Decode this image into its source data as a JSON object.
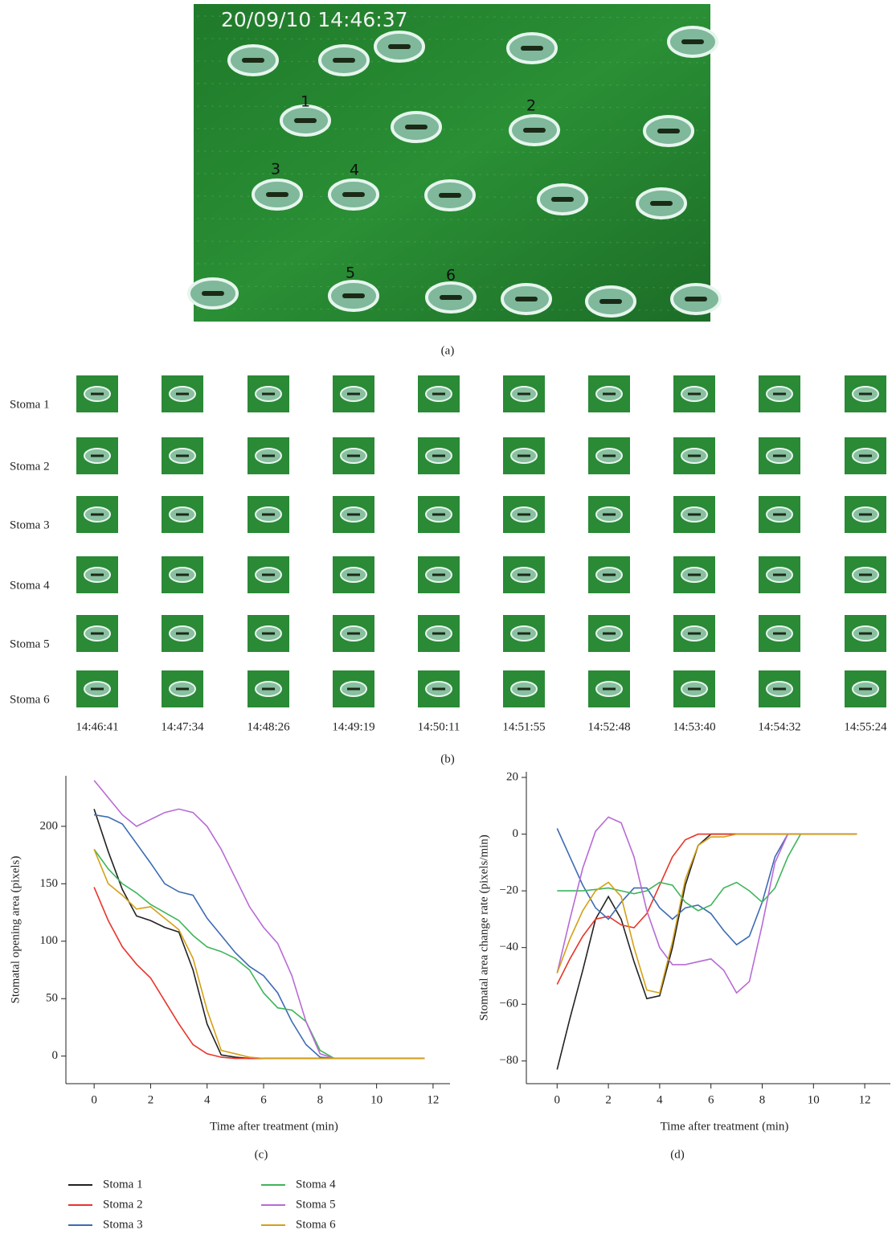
{
  "panel_a": {
    "timestamp": "20/09/10 14:46:37",
    "markers": [
      "1",
      "2",
      "3",
      "4",
      "5",
      "6"
    ],
    "caption": "(a)"
  },
  "panel_b": {
    "rows": [
      "Stoma 1",
      "Stoma 2",
      "Stoma 3",
      "Stoma 4",
      "Stoma 5",
      "Stoma 6"
    ],
    "times": [
      "14:46:41",
      "14:47:34",
      "14:48:26",
      "14:49:19",
      "14:50:11",
      "14:51:55",
      "14:52:48",
      "14:53:40",
      "14:54:32",
      "14:55:24"
    ],
    "caption": "(b)"
  },
  "chart_data": [
    {
      "type": "line",
      "caption": "(c)",
      "x_label": "Time after treatment (min)",
      "y_label": "Stomatal opening area (pixels)",
      "xlim": [
        -1,
        12.6
      ],
      "ylim": [
        -24,
        244
      ],
      "xticks": [
        0,
        2,
        4,
        6,
        8,
        10,
        12
      ],
      "yticks": [
        0,
        50,
        100,
        150,
        200
      ],
      "grid": false,
      "x": [
        0,
        0.5,
        1,
        1.5,
        2,
        2.5,
        3,
        3.5,
        4,
        4.5,
        5,
        5.5,
        6,
        6.5,
        7,
        7.5,
        8,
        8.5,
        9,
        10,
        11,
        11.7
      ],
      "series": [
        {
          "name": "Stoma 1",
          "color": "#222222",
          "values": [
            215,
            178,
            145,
            122,
            118,
            112,
            108,
            75,
            28,
            1,
            -1,
            -2,
            -2,
            -2,
            -2,
            -2,
            -2,
            -2,
            -2,
            -2,
            -2,
            -2
          ]
        },
        {
          "name": "Stoma 2",
          "color": "#e8352a",
          "values": [
            147,
            118,
            95,
            80,
            68,
            48,
            28,
            10,
            2,
            -1,
            -2,
            -2,
            -2,
            -2,
            -2,
            -2,
            -2,
            -2,
            -2,
            -2,
            -2,
            -2
          ]
        },
        {
          "name": "Stoma 3",
          "color": "#3d6bb3",
          "values": [
            210,
            208,
            202,
            185,
            168,
            150,
            143,
            140,
            120,
            105,
            90,
            78,
            70,
            55,
            30,
            10,
            -1,
            -2,
            -2,
            -2,
            -2,
            -2
          ]
        },
        {
          "name": "Stoma 4",
          "color": "#3fb55a",
          "values": [
            180,
            163,
            150,
            142,
            132,
            125,
            118,
            105,
            95,
            91,
            85,
            75,
            55,
            42,
            40,
            30,
            5,
            -2,
            -2,
            -2,
            -2,
            -2
          ]
        },
        {
          "name": "Stoma 5",
          "color": "#b86ad6",
          "values": [
            240,
            225,
            210,
            200,
            206,
            212,
            215,
            212,
            200,
            180,
            155,
            130,
            112,
            98,
            70,
            30,
            2,
            -2,
            -2,
            -2,
            -2,
            -2
          ]
        },
        {
          "name": "Stoma 6",
          "color": "#d4a017",
          "values": [
            180,
            150,
            140,
            128,
            130,
            120,
            110,
            85,
            40,
            5,
            2,
            -1,
            -2,
            -2,
            -2,
            -2,
            -2,
            -2,
            -2,
            -2,
            -2,
            -2
          ]
        }
      ]
    },
    {
      "type": "line",
      "caption": "(d)",
      "x_label": "Time after treatment (min)",
      "y_label": "Stomatal area change rate (pixels/min)",
      "xlim": [
        -1.2,
        13
      ],
      "ylim": [
        -88,
        22
      ],
      "xticks": [
        0,
        2,
        4,
        6,
        8,
        10,
        12
      ],
      "yticks": [
        {
          "value": -80,
          "label": "−80"
        },
        {
          "value": -60,
          "label": "−60"
        },
        {
          "value": -40,
          "label": "−40"
        },
        {
          "value": -20,
          "label": "−20"
        },
        0,
        20
      ],
      "grid": false,
      "x": [
        0,
        0.5,
        1,
        1.5,
        2,
        2.5,
        3,
        3.5,
        4,
        4.5,
        5,
        5.5,
        6,
        6.5,
        7,
        7.5,
        8,
        8.5,
        9,
        9.5,
        10,
        11,
        11.7
      ],
      "series": [
        {
          "color": "#222222",
          "values": [
            -83,
            -65,
            -48,
            -30,
            -22,
            -30,
            -45,
            -58,
            -57,
            -40,
            -18,
            -4,
            0,
            0,
            0,
            0,
            0,
            0,
            0,
            0,
            0,
            0,
            0
          ]
        },
        {
          "color": "#e8352a",
          "values": [
            -53,
            -44,
            -36,
            -30,
            -29,
            -32,
            -33,
            -28,
            -18,
            -8,
            -2,
            0,
            0,
            0,
            0,
            0,
            0,
            0,
            0,
            0,
            0,
            0,
            0
          ]
        },
        {
          "color": "#3d6bb3",
          "values": [
            2,
            -8,
            -18,
            -26,
            -30,
            -24,
            -19,
            -19,
            -26,
            -30,
            -26,
            -25,
            -28,
            -34,
            -39,
            -36,
            -24,
            -8,
            0,
            0,
            0,
            0,
            0
          ]
        },
        {
          "color": "#3fb55a",
          "values": [
            -20,
            -20,
            -20,
            -19.5,
            -19,
            -20,
            -21,
            -20,
            -17,
            -18,
            -24,
            -27,
            -25,
            -19,
            -17,
            -20,
            -24,
            -19,
            -8,
            0,
            0,
            0,
            0
          ]
        },
        {
          "color": "#b86ad6",
          "values": [
            -49,
            -30,
            -12,
            1,
            6,
            4,
            -8,
            -27,
            -40,
            -46,
            -46,
            -45,
            -44,
            -48,
            -56,
            -52,
            -32,
            -10,
            0,
            0,
            0,
            0,
            0
          ]
        },
        {
          "color": "#d4a017",
          "values": [
            -49,
            -37,
            -27,
            -20,
            -17,
            -22,
            -40,
            -55,
            -56,
            -38,
            -16,
            -4,
            -1,
            -1,
            0,
            0,
            0,
            0,
            0,
            0,
            0,
            0,
            0
          ]
        }
      ]
    }
  ]
}
